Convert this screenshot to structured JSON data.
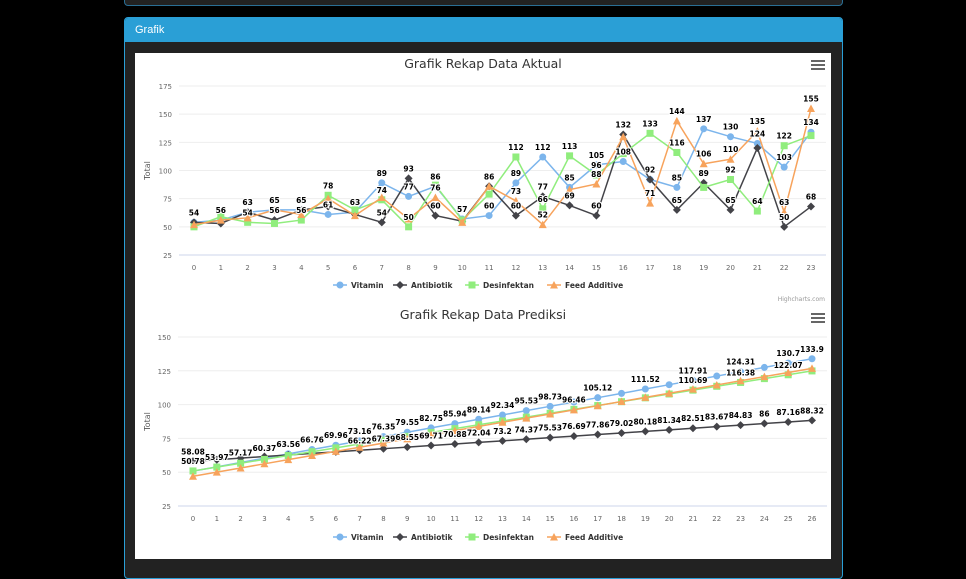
{
  "panel": {
    "title": "Grafik"
  },
  "colors": {
    "page_bg": "#000000",
    "panel_bg": "#222222",
    "header": "#2a9fd6"
  },
  "credits": "Highcharts.com",
  "chart_data": [
    {
      "type": "line",
      "title": "Grafik Rekap Data Aktual",
      "xlabel": "",
      "ylabel": "Total",
      "ylim": [
        25,
        175
      ],
      "yticks": [
        25,
        50,
        75,
        100,
        125,
        150,
        175
      ],
      "grid": true,
      "legend": "bottom",
      "categories": [
        0,
        1,
        2,
        3,
        4,
        5,
        6,
        7,
        8,
        9,
        10,
        11,
        12,
        13,
        14,
        15,
        16,
        17,
        18,
        19,
        20,
        21,
        22,
        23
      ],
      "series": [
        {
          "name": "Vitamin",
          "color": "#7cb5ec",
          "marker": "circle",
          "values": [
            54,
            56,
            63,
            65,
            65,
            61,
            63,
            89,
            77,
            86,
            57,
            60,
            89,
            112,
            85,
            105,
            108,
            92,
            85,
            137,
            130,
            124,
            103,
            134
          ]
        },
        {
          "name": "Antibiotik",
          "color": "#434348",
          "marker": "diamond",
          "values": [
            54,
            53,
            63,
            56,
            65,
            68,
            61,
            54,
            93,
            60,
            55,
            86,
            60,
            77,
            69,
            60,
            132,
            92,
            65,
            89,
            65,
            120,
            50,
            68
          ]
        },
        {
          "name": "Desinfektan",
          "color": "#90ed7d",
          "marker": "square",
          "values": [
            50,
            59,
            54,
            53,
            56,
            78,
            65,
            74,
            50,
            87,
            56,
            79,
            112,
            66,
            113,
            96,
            115,
            133,
            116,
            85,
            92,
            64,
            122,
            131
          ]
        },
        {
          "name": "Feed Additive",
          "color": "#f7a35c",
          "marker": "triangle",
          "values": [
            52,
            56,
            58,
            65,
            61,
            75,
            60,
            76,
            57,
            76,
            54,
            86,
            73,
            52,
            83,
            88,
            130,
            71,
            144,
            106,
            110,
            135,
            63,
            155
          ]
        }
      ]
    },
    {
      "type": "line",
      "title": "Grafik Rekap Data Prediksi",
      "xlabel": "",
      "ylabel": "Total",
      "ylim": [
        25,
        150
      ],
      "yticks": [
        25,
        50,
        75,
        100,
        125,
        150
      ],
      "grid": true,
      "legend": "bottom",
      "categories": [
        0,
        1,
        2,
        3,
        4,
        5,
        6,
        7,
        8,
        9,
        10,
        11,
        12,
        13,
        14,
        15,
        16,
        17,
        18,
        19,
        20,
        21,
        22,
        23,
        24,
        25,
        26
      ],
      "series": [
        {
          "name": "Vitamin",
          "color": "#7cb5ec",
          "marker": "circle",
          "values": [
            50.78,
            53.97,
            57.17,
            60.37,
            63.56,
            66.76,
            69.96,
            73.16,
            76.35,
            79.55,
            82.75,
            85.94,
            89.14,
            92.34,
            95.53,
            98.73,
            101.93,
            105.12,
            108.32,
            111.52,
            114.72,
            117.91,
            121.11,
            124.31,
            127.5,
            130.7,
            133.9
          ]
        },
        {
          "name": "Antibiotik",
          "color": "#434348",
          "marker": "diamond",
          "values": [
            58.08,
            59.24,
            60.4,
            61.57,
            62.73,
            63.89,
            65.06,
            66.22,
            67.39,
            68.55,
            69.71,
            70.88,
            72.04,
            73.2,
            74.37,
            75.53,
            76.69,
            77.86,
            79.02,
            80.18,
            81.34,
            82.51,
            83.67,
            84.83,
            86,
            87.16,
            88.32
          ]
        },
        {
          "name": "Desinfektan",
          "color": "#90ed7d",
          "marker": "square",
          "values": [
            50.94,
            53.78,
            56.63,
            59.47,
            62.32,
            65.16,
            68.01,
            70.85,
            73.7,
            76.54,
            79.39,
            82.23,
            85.08,
            87.92,
            90.77,
            93.61,
            96.46,
            99.31,
            102.15,
            105,
            107.84,
            110.69,
            113.53,
            116.38,
            119.22,
            122.07,
            124.91
          ]
        },
        {
          "name": "Feed Additive",
          "color": "#f7a35c",
          "marker": "triangle",
          "values": [
            47.0,
            50.07,
            53.14,
            56.21,
            59.28,
            62.35,
            65.42,
            68.49,
            71.56,
            74.63,
            77.7,
            80.77,
            83.84,
            86.91,
            89.98,
            93.05,
            96.12,
            99.19,
            102.26,
            105.33,
            108.4,
            111.47,
            114.54,
            117.61,
            120.68,
            123.75,
            126.82
          ]
        }
      ]
    }
  ]
}
